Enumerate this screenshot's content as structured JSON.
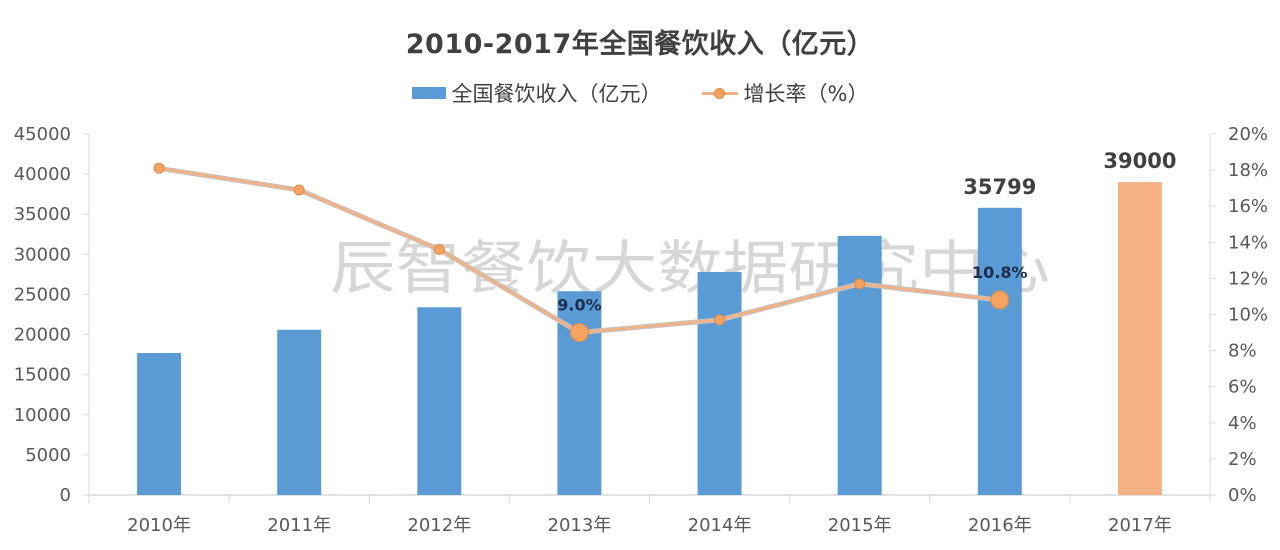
{
  "title": "2010-2017年全国餐饮收入（亿元）",
  "legend": {
    "bar_label": "全国餐饮收入（亿元）",
    "line_label": "增长率（%）"
  },
  "watermark": "辰智餐饮大数据研究中心",
  "colors": {
    "bar": "#5b9bd5",
    "bar_highlight": "#f4b183",
    "line": "#f4b183",
    "marker": "#f4a460",
    "axis": "#d9d9d9"
  },
  "chart_data": {
    "type": "bar",
    "title": "2010-2017年全国餐饮收入（亿元）",
    "xlabel": "",
    "ylabel": "",
    "categories": [
      "2010年",
      "2011年",
      "2012年",
      "2013年",
      "2014年",
      "2015年",
      "2016年",
      "2017年"
    ],
    "series": [
      {
        "name": "全国餐饮收入（亿元）",
        "type": "bar",
        "axis": "left",
        "values": [
          17700,
          20600,
          23400,
          25400,
          27800,
          32300,
          35799,
          39000
        ],
        "highlight_index": 7
      },
      {
        "name": "增长率（%）",
        "type": "line",
        "axis": "right",
        "values": [
          18.1,
          16.9,
          13.6,
          9.0,
          9.7,
          11.7,
          10.8,
          null
        ]
      }
    ],
    "data_labels": [
      {
        "series": 0,
        "index": 6,
        "text": "35799"
      },
      {
        "series": 0,
        "index": 7,
        "text": "39000"
      },
      {
        "series": 1,
        "index": 3,
        "text": "9.0%"
      },
      {
        "series": 1,
        "index": 6,
        "text": "10.8%"
      }
    ],
    "ylim": [
      0,
      45000
    ],
    "yticks": [
      0,
      5000,
      10000,
      15000,
      20000,
      25000,
      30000,
      35000,
      40000,
      45000
    ],
    "y2lim": [
      0,
      20
    ],
    "y2ticks": [
      "0%",
      "2%",
      "4%",
      "6%",
      "8%",
      "10%",
      "12%",
      "14%",
      "16%",
      "18%",
      "20%"
    ],
    "grid": false,
    "legend_position": "top"
  }
}
